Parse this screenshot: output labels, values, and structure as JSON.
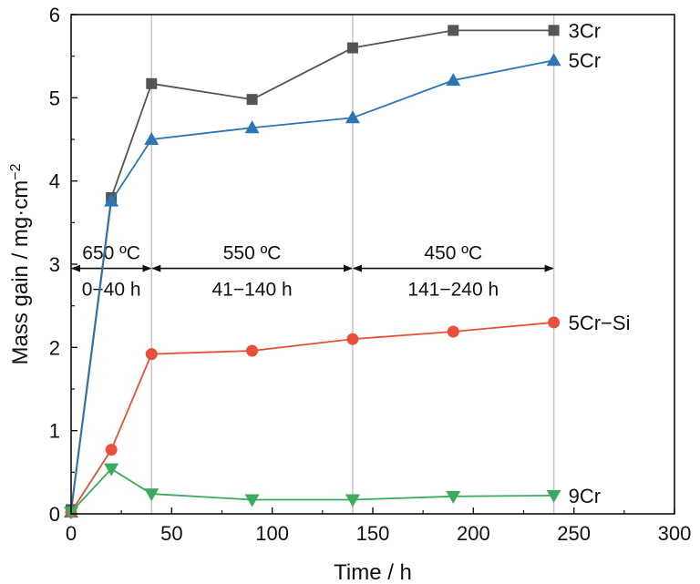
{
  "chart_data": {
    "type": "line",
    "xlabel": "Time / h",
    "ylabel": "Mass gain / mg·cm",
    "ylabel_exp": "−2",
    "xlim": [
      0,
      300
    ],
    "ylim": [
      0,
      6
    ],
    "xticks": [
      0,
      50,
      100,
      150,
      200,
      250,
      300
    ],
    "yticks": [
      0,
      1,
      2,
      3,
      4,
      5,
      6
    ],
    "vlines": [
      40,
      140,
      240
    ],
    "series": [
      {
        "name": "3Cr",
        "marker": "square",
        "color": "#555555",
        "x": [
          0,
          20,
          40,
          90,
          140,
          190,
          240
        ],
        "y": [
          0.05,
          3.8,
          5.17,
          4.98,
          5.6,
          5.81,
          5.81
        ]
      },
      {
        "name": "5Cr",
        "marker": "triangle-up",
        "color": "#2E75B6",
        "x": [
          0,
          20,
          40,
          90,
          140,
          190,
          240
        ],
        "y": [
          0.02,
          3.76,
          4.5,
          4.64,
          4.76,
          5.21,
          5.45
        ]
      },
      {
        "name": "5Cr−Si",
        "marker": "circle",
        "color": "#E8503A",
        "x": [
          0,
          20,
          40,
          90,
          140,
          190,
          240
        ],
        "y": [
          0.02,
          0.77,
          1.92,
          1.96,
          2.1,
          2.19,
          2.3
        ]
      },
      {
        "name": "9Cr",
        "marker": "triangle-down",
        "color": "#3BAA5E",
        "x": [
          0,
          20,
          40,
          90,
          140,
          190,
          240
        ],
        "y": [
          0.02,
          0.54,
          0.24,
          0.17,
          0.17,
          0.21,
          0.22
        ]
      }
    ],
    "stages": [
      {
        "temp": "650 ºC",
        "range": "0−40 h",
        "from": 0,
        "to": 40
      },
      {
        "temp": "550 ºC",
        "range": "41−140 h",
        "from": 40,
        "to": 140
      },
      {
        "temp": "450 ºC",
        "range": "141−240 h",
        "from": 140,
        "to": 240
      }
    ],
    "arrow_y": 2.95
  }
}
